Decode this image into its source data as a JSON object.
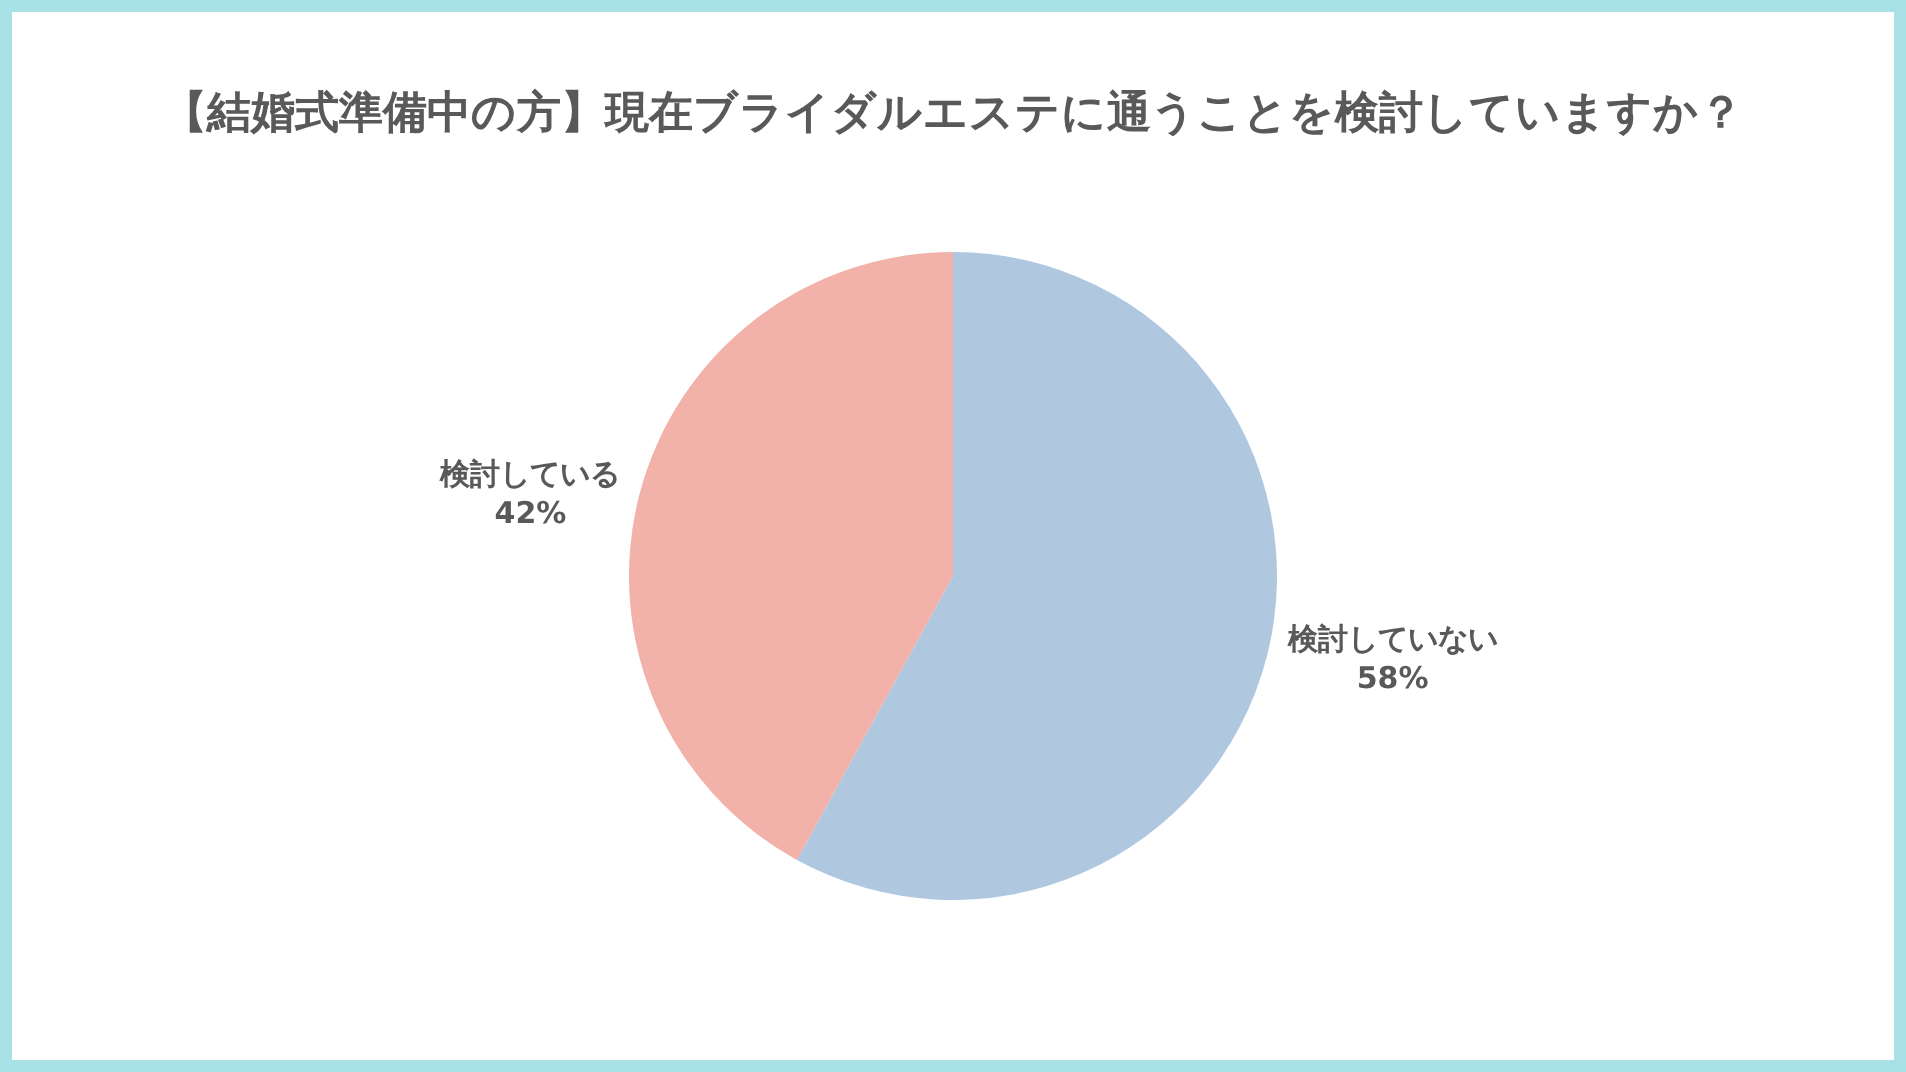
{
  "chart_data": {
    "type": "pie",
    "title": "【結婚式準備中の方】現在ブライダルエステに通うことを検討していますか？",
    "categories": [
      "検討していない",
      "検討している"
    ],
    "values": [
      58,
      42
    ],
    "value_labels": [
      "58%",
      "42%"
    ],
    "colors": [
      "#afc8e0",
      "#f2b2aa"
    ],
    "legend": false
  }
}
